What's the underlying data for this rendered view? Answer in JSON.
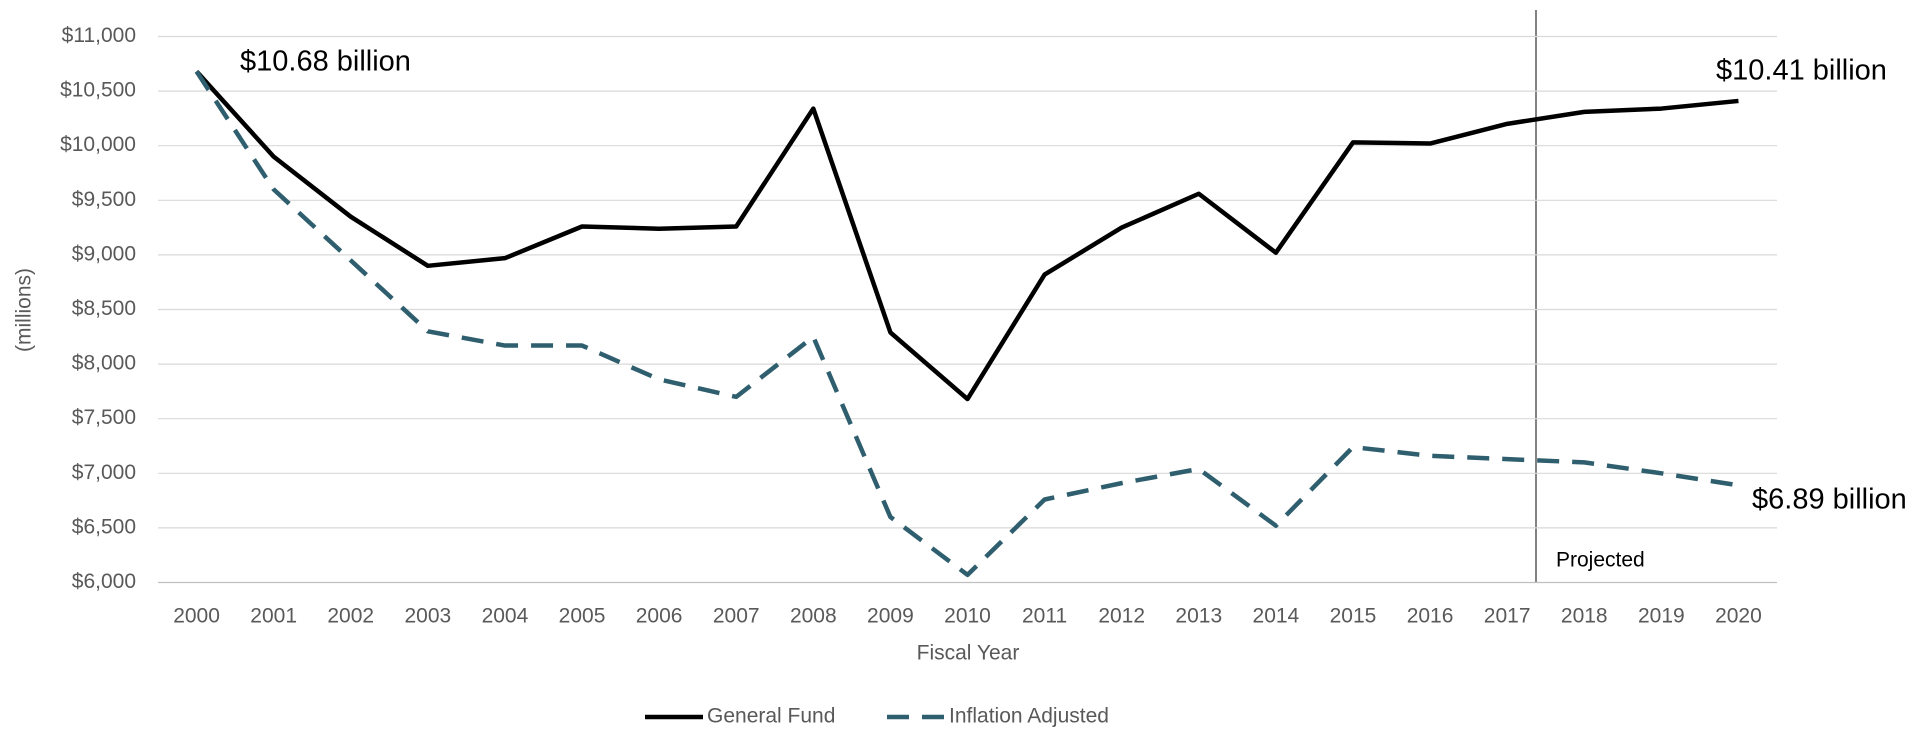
{
  "chart_data": {
    "type": "line",
    "x_label": "Fiscal Year",
    "y_label": "(millions)",
    "categories": [
      "2000",
      "2001",
      "2002",
      "2003",
      "2004",
      "2005",
      "2006",
      "2007",
      "2008",
      "2009",
      "2010",
      "2011",
      "2012",
      "2013",
      "2014",
      "2015",
      "2016",
      "2017",
      "2018",
      "2019",
      "2020"
    ],
    "series": [
      {
        "name": "General Fund",
        "color": "#000000",
        "dash": false,
        "values": [
          10680,
          9900,
          9350,
          8900,
          8970,
          9260,
          9240,
          9260,
          10340,
          8290,
          7680,
          8820,
          9250,
          9560,
          9020,
          10030,
          10020,
          10200,
          10310,
          10340,
          10410
        ]
      },
      {
        "name": "Inflation Adjusted",
        "color": "#2f5f6e",
        "dash": true,
        "values": [
          10680,
          9600,
          8950,
          8300,
          8170,
          8170,
          7860,
          7700,
          8250,
          6600,
          6070,
          6760,
          6910,
          7040,
          6520,
          7240,
          7160,
          7130,
          7100,
          7000,
          6890
        ]
      }
    ],
    "ylim": [
      6000,
      11000
    ],
    "yticks": [
      {
        "value": 6000,
        "label": "$6,000"
      },
      {
        "value": 6500,
        "label": "$6,500"
      },
      {
        "value": 7000,
        "label": "$7,000"
      },
      {
        "value": 7500,
        "label": "$7,500"
      },
      {
        "value": 8000,
        "label": "$8,000"
      },
      {
        "value": 8500,
        "label": "$8,500"
      },
      {
        "value": 9000,
        "label": "$9,000"
      },
      {
        "value": 9500,
        "label": "$9,500"
      },
      {
        "value": 10000,
        "label": "$10,000"
      },
      {
        "value": 10500,
        "label": "$10,500"
      },
      {
        "value": 11000,
        "label": "$11,000"
      }
    ],
    "grid": true,
    "annotations": [
      "$10.68 billion",
      "$10.41 billion",
      "$6.89 billion",
      "Projected"
    ],
    "legend": "bottom"
  }
}
